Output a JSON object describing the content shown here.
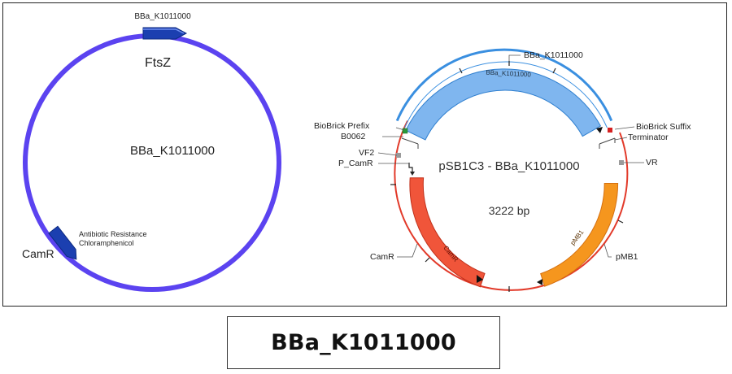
{
  "left_map": {
    "top_label": "BBa_K1011000",
    "gene_label": "FtsZ",
    "center_label": "BBa_K1011000",
    "marker_label_line1": "Antibiotic Resistance",
    "marker_label_line2": "Chloramphenicol",
    "marker_name": "CamR",
    "circle_color": "#5b43f0",
    "feature_color": "#1b3fb0"
  },
  "right_map": {
    "title": "pSB1C3 - BBa_K1011000",
    "size": "3222 bp",
    "labels": {
      "insert_top": "BBa_K1011000",
      "insert_inner": "BBa_K1011000",
      "prefix": "BioBrick Prefix",
      "b0062": "B0062",
      "vf2": "VF2",
      "p_camr": "P_CamR",
      "camr_outer": "CamR",
      "camr_inner": "CamR",
      "suffix": "BioBrick Suffix",
      "terminator": "Terminator",
      "vr": "VR",
      "pmb1_outer": "pMB1",
      "pmb1_inner": "pMB1"
    },
    "colors": {
      "backbone_ring": "#e23a2a",
      "insert_ring": "#3a8fe0",
      "insert_feature": "#7fb6ef",
      "camr_feature": "#f0553a",
      "pmb1_feature": "#f5961e"
    }
  },
  "caption": "BBa_K1011000"
}
